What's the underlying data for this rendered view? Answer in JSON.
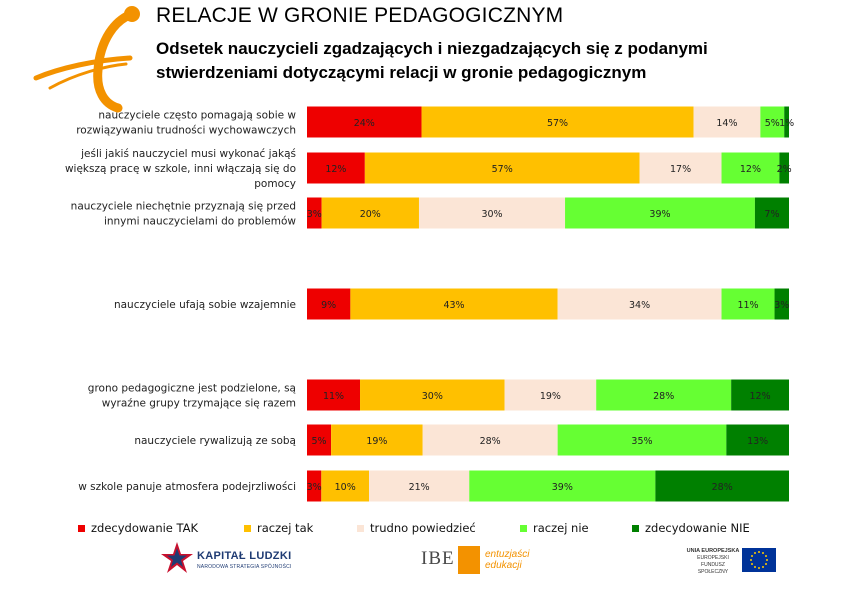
{
  "header": {
    "title": "RELACJE W GRONIE PEDAGOGICZNYM",
    "subtitle": "Odsetek nauczycieli zgadzających i niezgadzających się z podanymi stwierdzeniami dotyczącymi relacji w gronie pedagogicznym"
  },
  "colors": {
    "zdecydowanie_tak": "#ee0000",
    "raczej_tak": "#ffc000",
    "trudno_powiedziec": "#fbe5d6",
    "raczej_nie": "#66ff33",
    "zdecydowanie_nie": "#008000",
    "accent_orange": "#f39200"
  },
  "chart_data": {
    "type": "bar",
    "orientation": "horizontal",
    "stacked": true,
    "normalized": true,
    "xlim": [
      0,
      100
    ],
    "grid": false,
    "legend_position": "bottom",
    "categories": [
      [
        "nauczyciele często pomagają sobie w",
        "rozwiązywaniu trudności wychowawczych"
      ],
      [
        "jeśli jakiś nauczyciel musi wykonać jakąś",
        "większą pracę w szkole, inni włączają się do",
        "pomocy"
      ],
      [
        "nauczyciele niechętnie przyznają się przed",
        "innymi nauczycielami do problemów"
      ],
      [
        "nauczyciele ufają sobie wzajemnie"
      ],
      [
        "grono pedagogiczne jest podzielone, są",
        "wyraźne grupy trzymające się razem"
      ],
      [
        "nauczyciele rywalizują ze sobą"
      ],
      [
        "w szkole panuje atmosfera podejrzliwości"
      ]
    ],
    "series": [
      {
        "name": "zdecydowanie TAK",
        "key": "zdecydowanie_tak",
        "values": [
          24,
          12,
          3,
          9,
          11,
          5,
          3
        ],
        "labels": [
          "24%",
          "12%",
          "3%",
          "9%",
          "11%",
          "5%",
          "3%"
        ]
      },
      {
        "name": "raczej tak",
        "key": "raczej_tak",
        "values": [
          57,
          57,
          20,
          43,
          30,
          19,
          10
        ],
        "labels": [
          "57%",
          "57%",
          "20%",
          "43%",
          "30%",
          "19%",
          "10%"
        ]
      },
      {
        "name": "trudno powiedzieć",
        "key": "trudno_powiedziec",
        "values": [
          14,
          17,
          30,
          34,
          19,
          28,
          21
        ],
        "labels": [
          "14%",
          "17%",
          "30%",
          "34%",
          "19%",
          "28%",
          "21%"
        ]
      },
      {
        "name": "raczej nie",
        "key": "raczej_nie",
        "values": [
          5,
          12,
          39,
          11,
          28,
          35,
          39
        ],
        "labels": [
          "5%",
          "12%",
          "39%",
          "11%",
          "28%",
          "35%",
          "39%"
        ]
      },
      {
        "name": "zdecydowanie NIE",
        "key": "zdecydowanie_nie",
        "values": [
          1,
          2,
          7,
          3,
          12,
          13,
          28
        ],
        "labels": [
          "1%",
          "2%",
          "7%",
          "3%",
          "12%",
          "13%",
          "28%"
        ]
      }
    ]
  },
  "footer": {
    "kapital_ludzki": "KAPITAŁ LUDZKI",
    "kapital_ludzki_sub": "NARODOWA STRATEGIA SPÓJNOŚCI",
    "ibe": "IBE",
    "ibe_sub_1": "entuzjaści",
    "ibe_sub_2": "edukacji",
    "eu_line1": "UNIA EUROPEJSKA",
    "eu_line2": "EUROPEJSKI",
    "eu_line3": "FUNDUSZ SPOŁECZNY"
  }
}
